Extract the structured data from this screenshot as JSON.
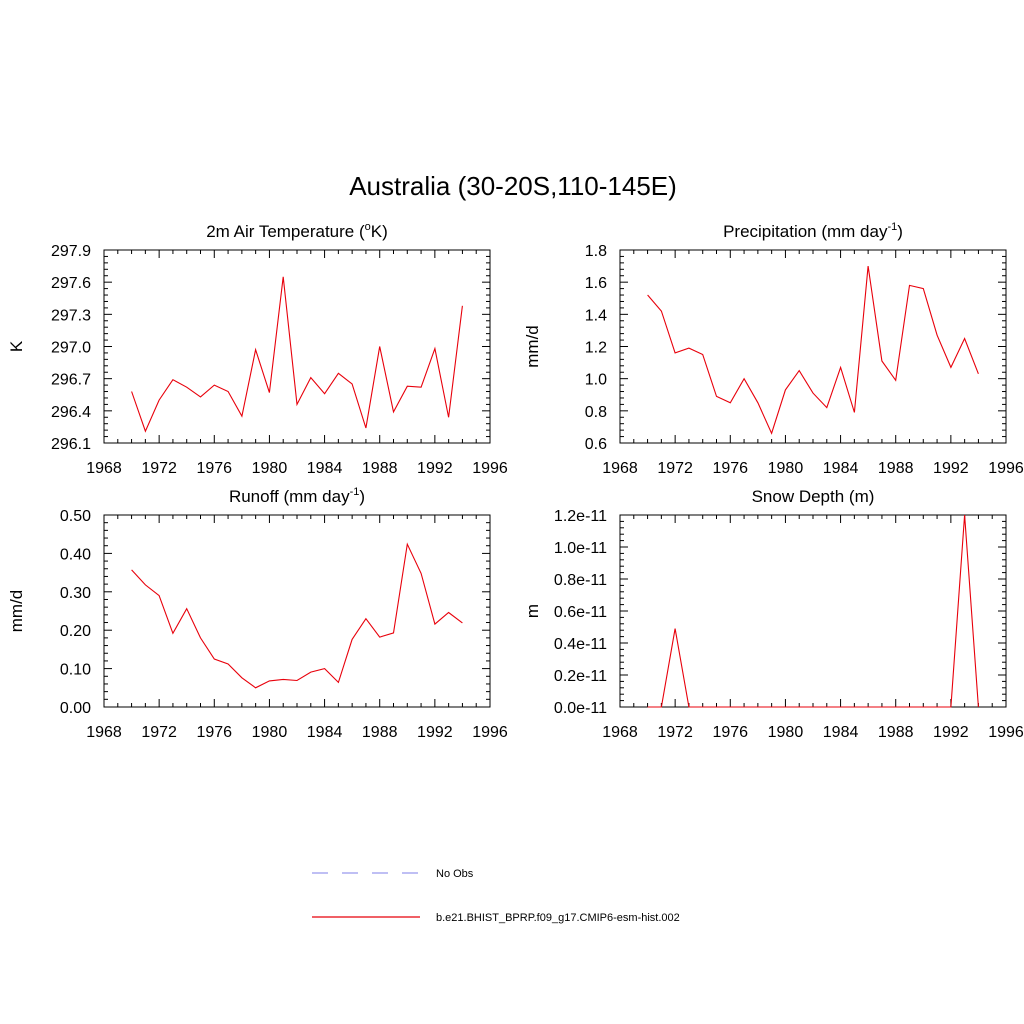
{
  "title": "Australia (30-20S,110-145E)",
  "colors": {
    "model": "#e8000b",
    "obs": "#9999ee",
    "axis": "#000000"
  },
  "legend": {
    "entries": [
      {
        "label": "No Obs",
        "style": "dashed",
        "color": "#9999ee"
      },
      {
        "label": "b.e21.BHIST_BPRP.f09_g17.CMIP6-esm-hist.002",
        "style": "solid",
        "color": "#e8000b"
      }
    ]
  },
  "chart_data": [
    {
      "type": "line",
      "title": "2m Air Temperature (",
      "title_super": "o",
      "title_tail": "K)",
      "ylabel": "K",
      "xlim": [
        1968,
        1996
      ],
      "xticks": [
        1968,
        1972,
        1976,
        1980,
        1984,
        1988,
        1992,
        1996
      ],
      "xtick_labels": [
        "1968",
        "1972",
        "1976",
        "1980",
        "1984",
        "1988",
        "1992",
        "1996"
      ],
      "ylim": [
        296.1,
        297.9
      ],
      "yticks": [
        296.1,
        296.4,
        296.7,
        297.0,
        297.3,
        297.6,
        297.9
      ],
      "ytick_labels": [
        "296.1",
        "296.4",
        "296.7",
        "297.0",
        "297.3",
        "297.6",
        "297.9"
      ],
      "x": [
        1970,
        1971,
        1972,
        1973,
        1974,
        1975,
        1976,
        1977,
        1978,
        1979,
        1980,
        1981,
        1982,
        1983,
        1984,
        1985,
        1986,
        1987,
        1988,
        1989,
        1990,
        1991,
        1992,
        1993,
        1994
      ],
      "y": [
        296.58,
        296.21,
        296.5,
        296.69,
        296.62,
        296.53,
        296.64,
        296.58,
        296.35,
        296.97,
        296.57,
        297.65,
        296.46,
        296.71,
        296.56,
        296.75,
        296.65,
        296.24,
        297.0,
        296.39,
        296.63,
        296.62,
        296.98,
        296.34,
        297.38
      ],
      "color": "#e8000b"
    },
    {
      "type": "line",
      "title": "Precipitation (mm day",
      "title_super": "-1",
      "title_tail": ")",
      "ylabel": "mm/d",
      "xlim": [
        1968,
        1996
      ],
      "xticks": [
        1968,
        1972,
        1976,
        1980,
        1984,
        1988,
        1992,
        1996
      ],
      "xtick_labels": [
        "1968",
        "1972",
        "1976",
        "1980",
        "1984",
        "1988",
        "1992",
        "1996"
      ],
      "ylim": [
        0.6,
        1.8
      ],
      "yticks": [
        0.6,
        0.8,
        1.0,
        1.2,
        1.4,
        1.6,
        1.8
      ],
      "ytick_labels": [
        "0.6",
        "0.8",
        "1.0",
        "1.2",
        "1.4",
        "1.6",
        "1.8"
      ],
      "x": [
        1970,
        1971,
        1972,
        1973,
        1974,
        1975,
        1976,
        1977,
        1978,
        1979,
        1980,
        1981,
        1982,
        1983,
        1984,
        1985,
        1986,
        1987,
        1988,
        1989,
        1990,
        1991,
        1992,
        1993,
        1994
      ],
      "y": [
        1.52,
        1.42,
        1.16,
        1.19,
        1.15,
        0.89,
        0.85,
        1.0,
        0.85,
        0.66,
        0.93,
        1.05,
        0.91,
        0.82,
        1.07,
        0.79,
        1.7,
        1.11,
        0.99,
        1.58,
        1.56,
        1.27,
        1.07,
        1.25,
        1.03
      ],
      "color": "#e8000b"
    },
    {
      "type": "line",
      "title": "Runoff (mm day",
      "title_super": "-1",
      "title_tail": ")",
      "ylabel": "mm/d",
      "xlim": [
        1968,
        1996
      ],
      "xticks": [
        1968,
        1972,
        1976,
        1980,
        1984,
        1988,
        1992,
        1996
      ],
      "xtick_labels": [
        "1968",
        "1972",
        "1976",
        "1980",
        "1984",
        "1988",
        "1992",
        "1996"
      ],
      "ylim": [
        0.0,
        0.5
      ],
      "yticks": [
        0.0,
        0.1,
        0.2,
        0.3,
        0.4,
        0.5
      ],
      "ytick_labels": [
        "0.00",
        "0.10",
        "0.20",
        "0.30",
        "0.40",
        "0.50"
      ],
      "x": [
        1970,
        1971,
        1972,
        1973,
        1974,
        1975,
        1976,
        1977,
        1978,
        1979,
        1980,
        1981,
        1982,
        1983,
        1984,
        1985,
        1986,
        1987,
        1988,
        1989,
        1990,
        1991,
        1992,
        1993,
        1994
      ],
      "y": [
        0.357,
        0.318,
        0.29,
        0.192,
        0.256,
        0.18,
        0.125,
        0.112,
        0.076,
        0.05,
        0.068,
        0.072,
        0.069,
        0.091,
        0.1,
        0.064,
        0.176,
        0.23,
        0.182,
        0.193,
        0.424,
        0.348,
        0.216,
        0.246,
        0.219
      ],
      "color": "#e8000b"
    },
    {
      "type": "line",
      "title": "Snow Depth (m)",
      "title_super": "",
      "title_tail": "",
      "ylabel": "m",
      "xlim": [
        1968,
        1996
      ],
      "xticks": [
        1968,
        1972,
        1976,
        1980,
        1984,
        1988,
        1992,
        1996
      ],
      "xtick_labels": [
        "1968",
        "1972",
        "1976",
        "1980",
        "1984",
        "1988",
        "1992",
        "1996"
      ],
      "ylim": [
        0.0,
        1.2e-11
      ],
      "yticks": [
        0.0,
        2e-12,
        4e-12,
        6e-12,
        8e-12,
        1e-11,
        1.2e-11
      ],
      "ytick_labels": [
        "0.0e-11",
        "0.2e-11",
        "0.4e-11",
        "0.6e-11",
        "0.8e-11",
        "1.0e-11",
        "1.2e-11"
      ],
      "x": [
        1970,
        1971,
        1972,
        1973,
        1974,
        1975,
        1976,
        1977,
        1978,
        1979,
        1980,
        1981,
        1982,
        1983,
        1984,
        1985,
        1986,
        1987,
        1988,
        1989,
        1990,
        1991,
        1992,
        1993,
        1994
      ],
      "y": [
        0,
        0,
        4.9e-12,
        0,
        0,
        0,
        0,
        0,
        0,
        0,
        0,
        0,
        0,
        0,
        0,
        0,
        0,
        0,
        0,
        0,
        0,
        0,
        0,
        1.2e-11,
        0
      ],
      "color": "#e8000b"
    }
  ]
}
